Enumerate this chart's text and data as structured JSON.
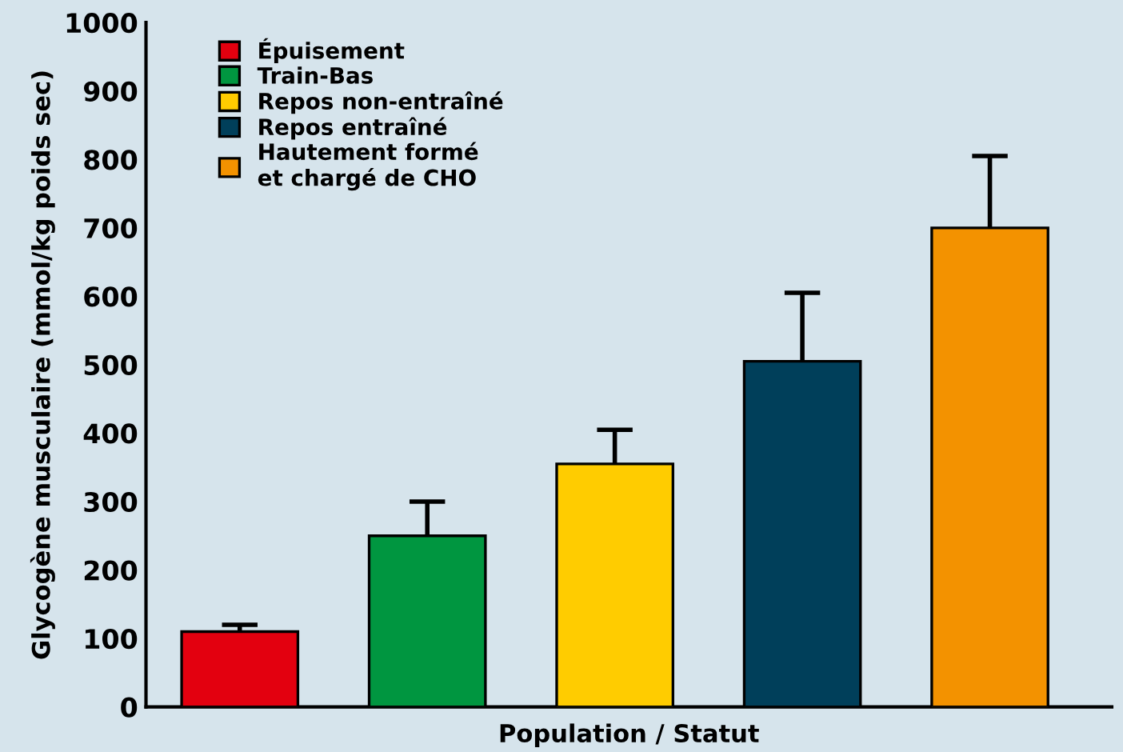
{
  "chart_data": {
    "type": "bar",
    "xlabel": "Population / Statut",
    "ylabel": "Glycogène musculaire (mmol/kg poids sec)",
    "categories": [
      null,
      null,
      null,
      null,
      null
    ],
    "series": [
      {
        "name": "Épuisement",
        "color": "#e3000f",
        "values": [
          110,
          null,
          null,
          null,
          null
        ],
        "errors": [
          10,
          null,
          null,
          null,
          null
        ]
      },
      {
        "name": "Train-Bas",
        "color": "#009640",
        "values": [
          null,
          250,
          null,
          null,
          null
        ],
        "errors": [
          null,
          50,
          null,
          null,
          null
        ]
      },
      {
        "name": "Repos non-entraîné",
        "color": "#ffcc00",
        "values": [
          null,
          null,
          355,
          null,
          null
        ],
        "errors": [
          null,
          null,
          50,
          null,
          null
        ]
      },
      {
        "name": "Repos entraîné",
        "color": "#003f5a",
        "values": [
          null,
          null,
          null,
          505,
          null
        ],
        "errors": [
          null,
          null,
          null,
          100,
          null
        ]
      },
      {
        "name": "Hautement formé\net chargé de CHO",
        "color": "#f39200",
        "values": [
          null,
          null,
          null,
          null,
          700
        ],
        "errors": [
          null,
          null,
          null,
          null,
          105
        ]
      }
    ],
    "ylim": [
      0,
      1000
    ],
    "yticks": [
      0,
      100,
      200,
      300,
      400,
      500,
      600,
      700,
      800,
      900,
      1000
    ],
    "grid": false,
    "legend": "top left"
  }
}
